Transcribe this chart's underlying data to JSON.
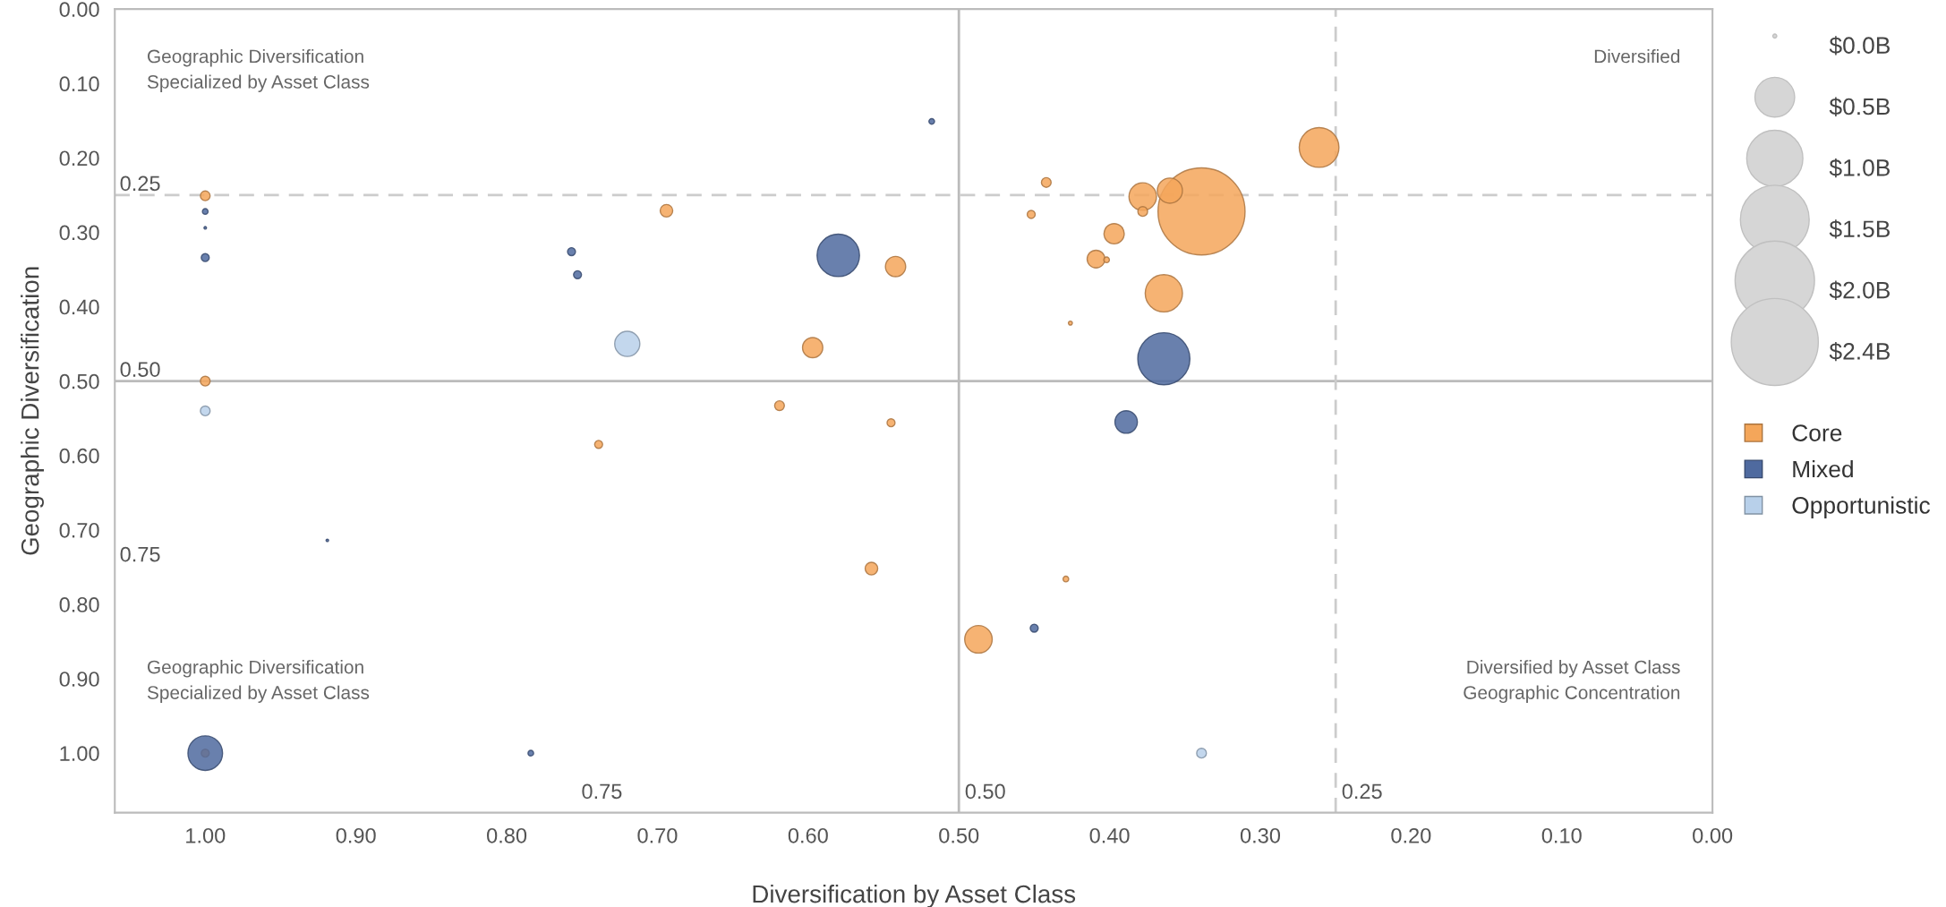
{
  "chart_data": {
    "type": "bubble",
    "xlabel": "Diversification by Asset Class",
    "ylabel": "Geographic Diversification",
    "xlim": [
      1.06,
      0.0
    ],
    "ylim": [
      1.08,
      0.0
    ],
    "xticks": [
      {
        "value": 1.0,
        "label": "1.00"
      },
      {
        "value": 0.9,
        "label": "0.90"
      },
      {
        "value": 0.8,
        "label": "0.80"
      },
      {
        "value": 0.7,
        "label": "0.70"
      },
      {
        "value": 0.6,
        "label": "0.60"
      },
      {
        "value": 0.5,
        "label": "0.50"
      },
      {
        "value": 0.4,
        "label": "0.40"
      },
      {
        "value": 0.3,
        "label": "0.30"
      },
      {
        "value": 0.2,
        "label": "0.20"
      },
      {
        "value": 0.1,
        "label": "0.10"
      },
      {
        "value": 0.0,
        "label": "0.00"
      }
    ],
    "yticks": [
      {
        "value": 0.0,
        "label": "0.00"
      },
      {
        "value": 0.1,
        "label": "0.10"
      },
      {
        "value": 0.2,
        "label": "0.20"
      },
      {
        "value": 0.3,
        "label": "0.30"
      },
      {
        "value": 0.4,
        "label": "0.40"
      },
      {
        "value": 0.5,
        "label": "0.50"
      },
      {
        "value": 0.6,
        "label": "0.60"
      },
      {
        "value": 0.7,
        "label": "0.70"
      },
      {
        "value": 0.8,
        "label": "0.80"
      },
      {
        "value": 0.9,
        "label": "0.90"
      },
      {
        "value": 1.0,
        "label": "1.00"
      }
    ],
    "size_legend": [
      {
        "value": 0.005,
        "label": "$0.0B"
      },
      {
        "value": 0.5,
        "label": "$0.5B"
      },
      {
        "value": 1.0,
        "label": "$1.0B"
      },
      {
        "value": 1.5,
        "label": "$1.5B"
      },
      {
        "value": 2.0,
        "label": "$2.0B"
      },
      {
        "value": 2.4,
        "label": "$2.4B"
      }
    ],
    "legend": "right",
    "grid": false,
    "marker": "circle",
    "series": [
      {
        "name": "Core",
        "color": "#f4a65a",
        "x": [
          0.261,
          0.339,
          0.378,
          0.36,
          0.378,
          0.364,
          0.397,
          0.409,
          0.402,
          0.442,
          0.452,
          0.426,
          0.542,
          0.597,
          0.694,
          1.0,
          1.0,
          0.619,
          0.545,
          0.739,
          0.558,
          0.487,
          0.429,
          1.0
        ],
        "values": [
          0.186,
          0.272,
          0.252,
          0.244,
          0.272,
          0.382,
          0.302,
          0.336,
          0.337,
          0.233,
          0.276,
          0.422,
          0.346,
          0.455,
          0.271,
          0.251,
          0.5,
          0.533,
          0.556,
          0.585,
          0.752,
          0.847,
          0.766,
          1.0
        ],
        "sizes": [
          0.5,
          2.4,
          0.24,
          0.2,
          0.03,
          0.44,
          0.13,
          0.1,
          0.01,
          0.03,
          0.02,
          0.005,
          0.13,
          0.13,
          0.05,
          0.03,
          0.03,
          0.03,
          0.02,
          0.02,
          0.05,
          0.24,
          0.01,
          0.02
        ]
      },
      {
        "name": "Mixed",
        "color": "#4f6a9f",
        "x": [
          0.58,
          0.364,
          0.389,
          1.0,
          0.757,
          0.753,
          1.0,
          1.0,
          1.0,
          0.518,
          0.45,
          0.784,
          0.919
        ],
        "values": [
          0.331,
          0.47,
          0.555,
          1.0,
          0.326,
          0.357,
          0.334,
          0.272,
          0.294,
          0.151,
          0.832,
          1.0,
          0.714
        ],
        "sizes": [
          0.57,
          0.86,
          0.16,
          0.38,
          0.02,
          0.02,
          0.02,
          0.01,
          0.002,
          0.01,
          0.02,
          0.01,
          0.002
        ]
      },
      {
        "name": "Opportunistic",
        "color": "#b8d0ea",
        "x": [
          0.72,
          1.0,
          0.339
        ],
        "values": [
          0.45,
          0.54,
          1.0
        ],
        "sizes": [
          0.2,
          0.03,
          0.03
        ]
      }
    ],
    "ref_lines": [
      {
        "axis": "y",
        "value": 0.25,
        "label": "0.25",
        "line_style": "dashed",
        "color": "#cccccc"
      },
      {
        "axis": "y",
        "value": 0.5,
        "label": "0.50",
        "line_style": "solid",
        "color": "#bbbbbb"
      },
      {
        "axis": "x",
        "value": 0.5,
        "label": "0.50",
        "line_style": "solid",
        "color": "#bbbbbb"
      },
      {
        "axis": "x",
        "value": 0.25,
        "label": "0.25",
        "line_style": "dashed",
        "color": "#cccccc"
      }
    ],
    "annotations": [
      "Geographic Diversification\nSpecialized by Asset Class",
      "Diversified",
      "Geographic Diversification\nSpecialized by Asset Class",
      "Diversified by Asset Class\nGeographic Concentration",
      "0.75",
      "0.75"
    ]
  }
}
